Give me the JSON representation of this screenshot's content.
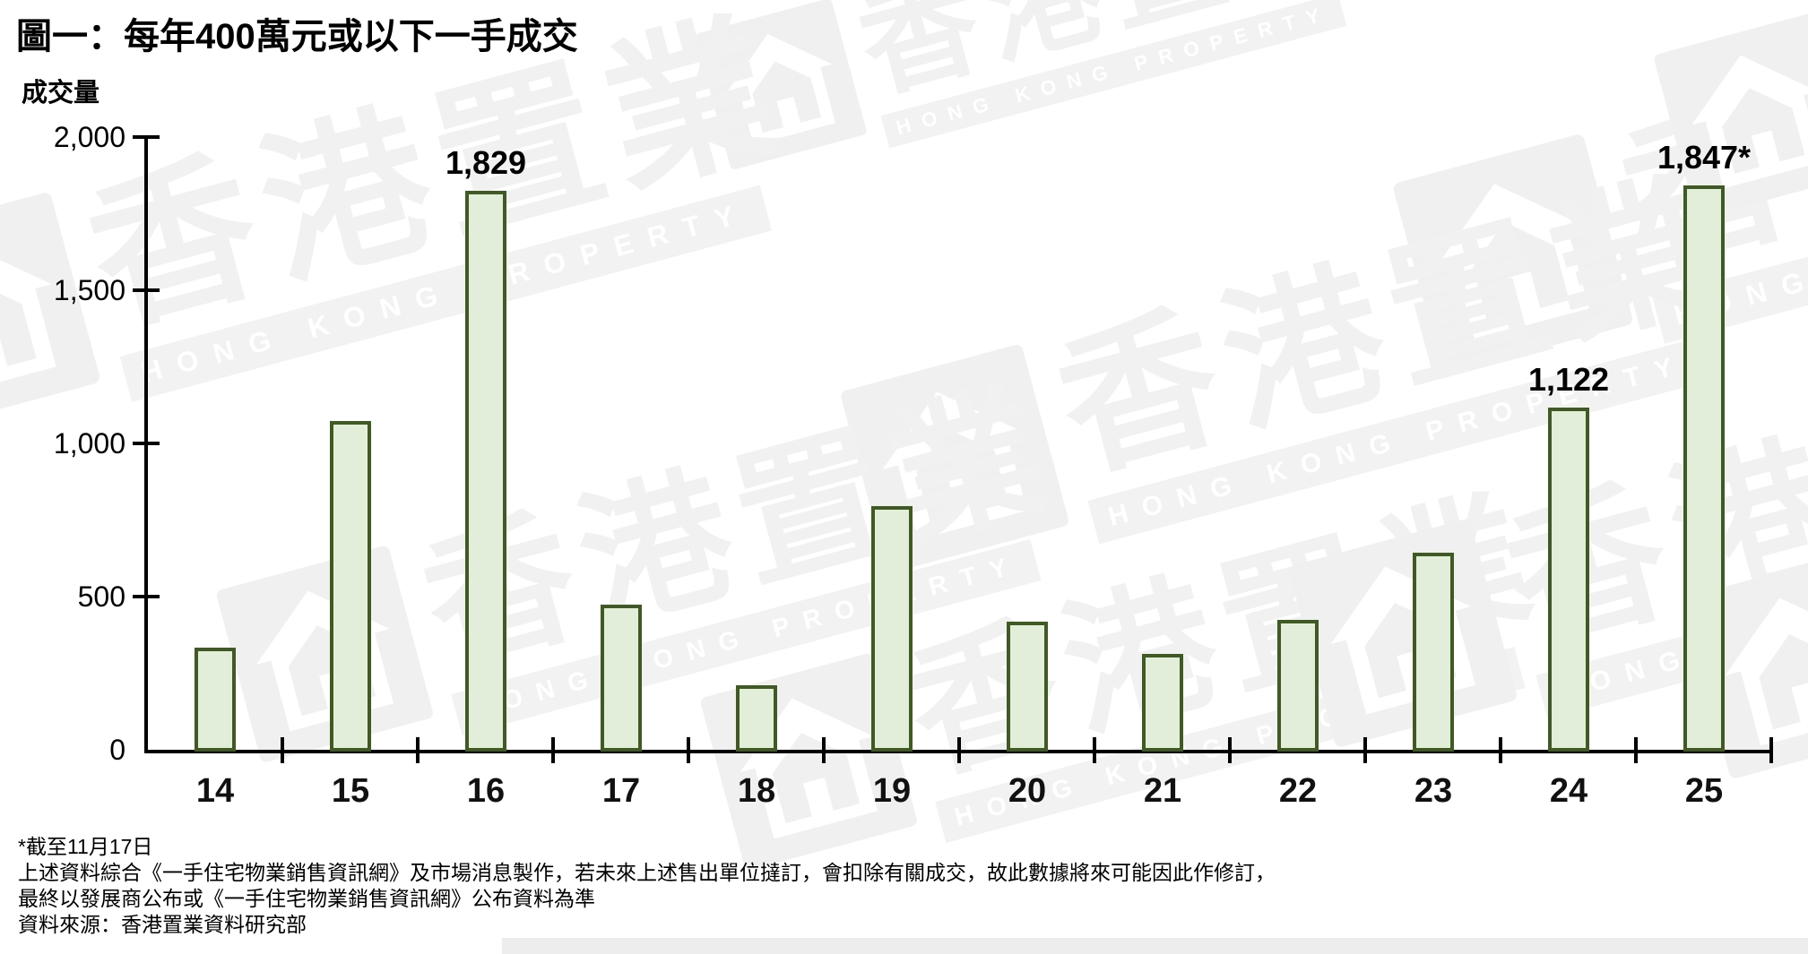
{
  "title": "圖一：每年400萬元或以下一手成交",
  "y_axis_title": "成交量",
  "watermark": {
    "zh": "香港置業",
    "en": "HONG KONG PROPERTY"
  },
  "footnotes": [
    "*截至11月17日",
    "上述資料綜合《一手住宅物業銷售資訊網》及市場消息製作，若未來上述售出單位撻訂，會扣除有關成交，故此數據將來可能因此作修訂，",
    "最終以發展商公布或《一手住宅物業銷售資訊網》公布資料為準",
    "資料來源：香港置業資料研究部"
  ],
  "chart_data": {
    "type": "bar",
    "title": "圖一：每年400萬元或以下一手成交",
    "xlabel": "",
    "ylabel": "成交量",
    "categories": [
      "14",
      "15",
      "16",
      "17",
      "18",
      "19",
      "20",
      "21",
      "22",
      "23",
      "24",
      "25"
    ],
    "values": [
      340,
      1080,
      1829,
      480,
      215,
      800,
      425,
      320,
      430,
      650,
      1122,
      1847
    ],
    "data_labels": {
      "16": "1,829",
      "24": "1,122",
      "25": "1,847*"
    },
    "ylim": [
      0,
      2000
    ],
    "yticks": [
      0,
      500,
      1000,
      1500,
      2000
    ],
    "ytick_labels": [
      "0",
      "500",
      "1,000",
      "1,500",
      "2,000"
    ],
    "grid": false,
    "legend": "none",
    "bar_fill": "#e3eeda",
    "bar_border": "#3f5a22",
    "axis_color": "#000000"
  }
}
